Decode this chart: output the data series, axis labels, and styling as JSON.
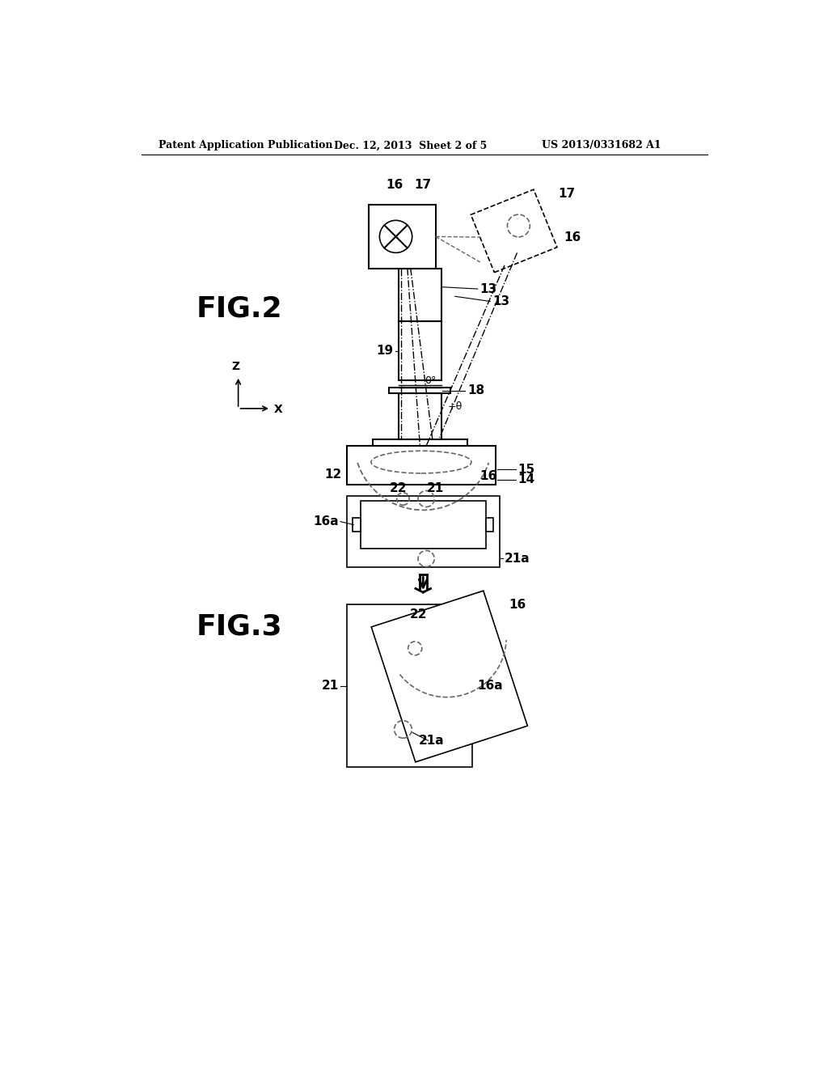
{
  "bg_color": "#ffffff",
  "header_text": "Patent Application Publication",
  "header_date": "Dec. 12, 2013  Sheet 2 of 5",
  "header_patent": "US 2013/0331682 A1",
  "fig2_label": "FIG.2",
  "fig3_label": "FIG.3",
  "line_color": "#000000",
  "dashed_color": "#666666",
  "label_fontsize": 11,
  "header_fontsize": 10,
  "fig_label_fontsize": 26
}
